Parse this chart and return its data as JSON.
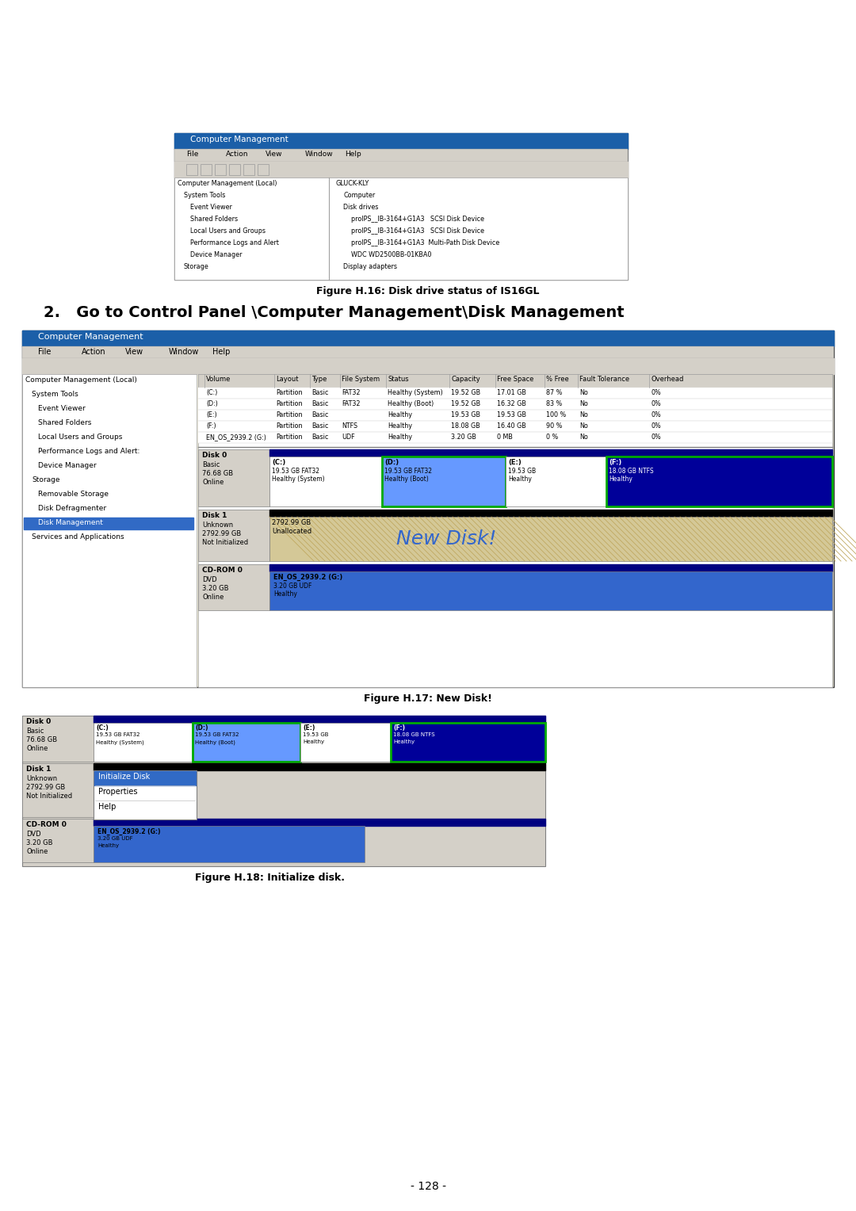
{
  "page_bg": "#ffffff",
  "page_number": "- 128 -",
  "fig16_caption": "Figure H.16: Disk drive status of IS16GL",
  "fig17_caption": "Figure H.17: New Disk!",
  "fig18_caption": "Figure H.18: Initialize disk.",
  "step2_text": "2.   Go to Control Panel \\Computer Management\\Disk Management",
  "title_bar_color": "#1b5fa8",
  "title_bar_text_color": "#ffffff",
  "toolbar_bg": "#d4d0c8",
  "window_bg": "#ece9d8",
  "selected_blue": "#316ac5",
  "disk_label_bg": "#d4d0c8",
  "partition_c_bg": "#ffffff",
  "partition_d_bg": "#6699ff",
  "partition_e_bg": "#ffffff",
  "partition_f_bg": "#000099",
  "unalloc_bg": "#d4c897",
  "cdrom_part_bg": "#3366cc",
  "black_bar": "#000000",
  "dark_blue_bar": "#000080",
  "green_border": "#00aa00",
  "context_highlight": "#316ac5",
  "header_divider": "#808080"
}
